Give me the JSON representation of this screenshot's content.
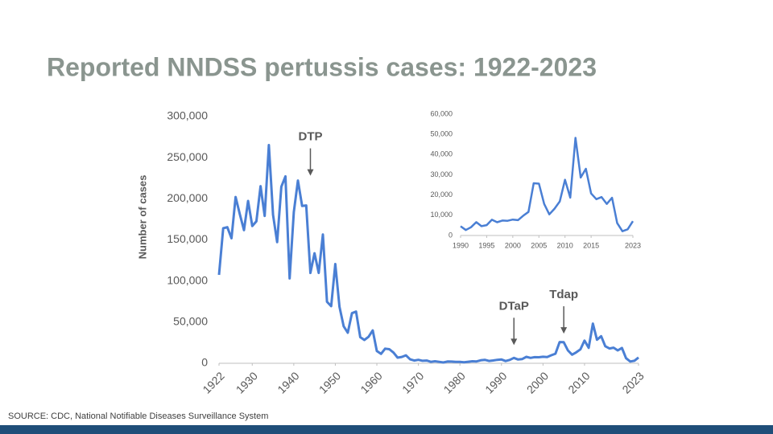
{
  "title": "Reported NNDSS pertussis cases: 1922-2023",
  "source": "SOURCE: CDC, National Notifiable Diseases Surveillance System",
  "chart_data": [
    {
      "type": "line",
      "ylabel": "Number of cases",
      "color": "#4a7fd4",
      "x": [
        1922,
        1923,
        1924,
        1925,
        1926,
        1927,
        1928,
        1929,
        1930,
        1931,
        1932,
        1933,
        1934,
        1935,
        1936,
        1937,
        1938,
        1939,
        1940,
        1941,
        1942,
        1943,
        1944,
        1945,
        1946,
        1947,
        1948,
        1949,
        1950,
        1951,
        1952,
        1953,
        1954,
        1955,
        1956,
        1957,
        1958,
        1959,
        1960,
        1961,
        1962,
        1963,
        1964,
        1965,
        1966,
        1967,
        1968,
        1969,
        1970,
        1971,
        1972,
        1973,
        1974,
        1975,
        1976,
        1977,
        1978,
        1979,
        1980,
        1981,
        1982,
        1983,
        1984,
        1985,
        1986,
        1987,
        1988,
        1989,
        1990,
        1991,
        1992,
        1993,
        1994,
        1995,
        1996,
        1997,
        1998,
        1999,
        2000,
        2001,
        2002,
        2003,
        2004,
        2005,
        2006,
        2007,
        2008,
        2009,
        2010,
        2011,
        2012,
        2013,
        2014,
        2015,
        2016,
        2017,
        2018,
        2019,
        2020,
        2021,
        2022,
        2023
      ],
      "values": [
        107473,
        164191,
        165418,
        152003,
        202210,
        181411,
        161799,
        197371,
        166914,
        172559,
        215343,
        179135,
        265269,
        180518,
        147237,
        214652,
        227319,
        103188,
        183866,
        222202,
        191383,
        191890,
        109873,
        133792,
        109860,
        156517,
        74715,
        69479,
        120718,
        68687,
        45030,
        37129,
        60886,
        62786,
        31732,
        28295,
        32148,
        40005,
        14809,
        11468,
        17749,
        17135,
        13005,
        6799,
        7717,
        9718,
        4810,
        3285,
        4249,
        3036,
        3287,
        1759,
        2402,
        1738,
        1010,
        2177,
        2063,
        1623,
        1730,
        1248,
        1895,
        2463,
        2276,
        3589,
        4195,
        2823,
        3450,
        4157,
        4570,
        2719,
        4083,
        6586,
        4617,
        5137,
        7796,
        6564,
        7405,
        7288,
        7867,
        7580,
        9771,
        11647,
        25827,
        25616,
        15632,
        10454,
        13278,
        16858,
        27550,
        18719,
        48277,
        28639,
        32971,
        20762,
        17972,
        18975,
        15609,
        18617,
        6124,
        2116,
        3044,
        7063
      ],
      "xlim": [
        1922,
        2023
      ],
      "xticks": [
        1922,
        1930,
        1940,
        1950,
        1960,
        1970,
        1980,
        1990,
        2000,
        2010,
        2023
      ],
      "ylim": [
        0,
        300000
      ],
      "yticks": [
        0,
        {
          "value": 50000,
          "label": "50,000"
        },
        {
          "value": 100000,
          "label": "100,000"
        },
        {
          "value": 150000,
          "label": "150,000"
        },
        {
          "value": 200000,
          "label": "200,000"
        },
        {
          "value": 250000,
          "label": "250,000"
        },
        {
          "value": 300000,
          "label": "300,000"
        }
      ],
      "annotations": [
        {
          "text": "DTP",
          "x": 1944,
          "y": 275000
        },
        {
          "text": "DTaP",
          "x": 1993,
          "y": 69000
        },
        {
          "text": "Tdap",
          "x": 2005,
          "y": 83000
        }
      ]
    },
    {
      "type": "line",
      "color": "#4a7fd4",
      "x": [
        1990,
        1991,
        1992,
        1993,
        1994,
        1995,
        1996,
        1997,
        1998,
        1999,
        2000,
        2001,
        2002,
        2003,
        2004,
        2005,
        2006,
        2007,
        2008,
        2009,
        2010,
        2011,
        2012,
        2013,
        2014,
        2015,
        2016,
        2017,
        2018,
        2019,
        2020,
        2021,
        2022,
        2023
      ],
      "values": [
        4570,
        2719,
        4083,
        6586,
        4617,
        5137,
        7796,
        6564,
        7405,
        7288,
        7867,
        7580,
        9771,
        11647,
        25827,
        25616,
        15632,
        10454,
        13278,
        16858,
        27550,
        18719,
        48277,
        28639,
        32971,
        20762,
        17972,
        18975,
        15609,
        18617,
        6124,
        2116,
        3044,
        7063
      ],
      "xlim": [
        1990,
        2023
      ],
      "xticks": [
        1990,
        1995,
        2000,
        2005,
        2010,
        2015,
        2023
      ],
      "ylim": [
        0,
        60000
      ],
      "yticks": [
        0,
        {
          "value": 10000,
          "label": "10,000"
        },
        {
          "value": 20000,
          "label": "20,000"
        },
        {
          "value": 30000,
          "label": "30,000"
        },
        {
          "value": 40000,
          "label": "40,000"
        },
        {
          "value": 50000,
          "label": "50,000"
        },
        {
          "value": 60000,
          "label": "60,000"
        }
      ]
    }
  ]
}
